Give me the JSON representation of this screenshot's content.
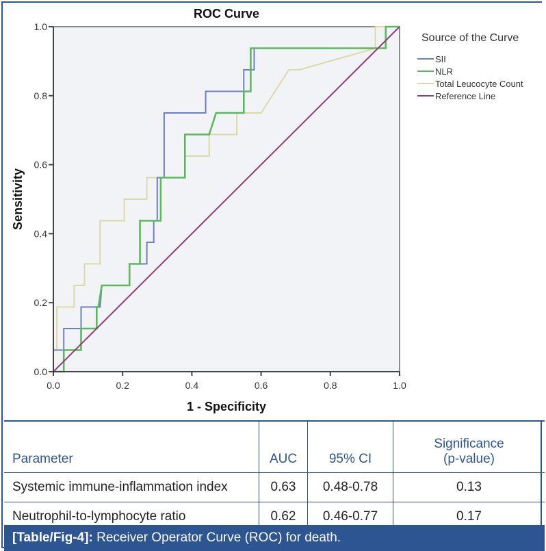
{
  "chart_data": {
    "type": "line",
    "title": "ROC Curve",
    "xlabel": "1 - Specificity",
    "ylabel": "Sensitivity",
    "xlim": [
      0,
      1
    ],
    "ylim": [
      0,
      1
    ],
    "xticks": [
      "0.0",
      "0.2",
      "0.4",
      "0.6",
      "0.8",
      "1.0"
    ],
    "yticks": [
      "0.0",
      "0.2",
      "0.4",
      "0.6",
      "0.8",
      "1.0"
    ],
    "grid": false,
    "legend_title": "Source of the Curve",
    "legend_position": "right",
    "series": [
      {
        "name": "SII",
        "color": "#6b7fc4",
        "x": [
          0.0,
          0.0,
          0.03,
          0.03,
          0.08,
          0.08,
          0.135,
          0.14,
          0.22,
          0.22,
          0.27,
          0.27,
          0.29,
          0.29,
          0.3,
          0.3,
          0.32,
          0.32,
          0.44,
          0.44,
          0.55,
          0.55,
          0.58,
          0.58,
          0.96,
          0.96,
          1.0
        ],
        "y": [
          0.0,
          0.0625,
          0.0625,
          0.125,
          0.125,
          0.1875,
          0.1875,
          0.25,
          0.25,
          0.3125,
          0.3125,
          0.375,
          0.375,
          0.4375,
          0.4375,
          0.5625,
          0.5625,
          0.75,
          0.75,
          0.8125,
          0.8125,
          0.875,
          0.875,
          0.9375,
          0.9375,
          1.0,
          1.0
        ]
      },
      {
        "name": "NLR",
        "color": "#5cb85c",
        "x": [
          0.0,
          0.03,
          0.03,
          0.04,
          0.04,
          0.08,
          0.08,
          0.125,
          0.125,
          0.13,
          0.14,
          0.22,
          0.22,
          0.25,
          0.25,
          0.31,
          0.31,
          0.38,
          0.38,
          0.45,
          0.47,
          0.55,
          0.55,
          0.57,
          0.57,
          0.96,
          0.96,
          1.0
        ],
        "y": [
          0.0,
          0.0,
          0.0625,
          0.0625,
          0.0625,
          0.0625,
          0.125,
          0.125,
          0.1875,
          0.1875,
          0.25,
          0.25,
          0.3125,
          0.3125,
          0.4375,
          0.4375,
          0.5625,
          0.5625,
          0.6875,
          0.6875,
          0.75,
          0.75,
          0.8125,
          0.8125,
          0.9375,
          0.9375,
          1.0,
          1.0
        ]
      },
      {
        "name": "Total Leucocyte Count",
        "color": "#dcd9a6",
        "x": [
          0.0,
          0.0,
          0.01,
          0.01,
          0.06,
          0.06,
          0.09,
          0.09,
          0.135,
          0.135,
          0.205,
          0.205,
          0.27,
          0.27,
          0.31,
          0.31,
          0.38,
          0.38,
          0.45,
          0.45,
          0.53,
          0.53,
          0.57,
          0.6,
          0.68,
          0.71,
          0.93,
          0.93,
          1.0
        ],
        "y": [
          0.0,
          0.0625,
          0.0625,
          0.1875,
          0.1875,
          0.25,
          0.25,
          0.3125,
          0.3125,
          0.4375,
          0.4375,
          0.5,
          0.5,
          0.5625,
          0.5625,
          0.5625,
          0.5625,
          0.625,
          0.625,
          0.6875,
          0.6875,
          0.75,
          0.75,
          0.75,
          0.875,
          0.875,
          0.9375,
          1.0,
          1.0
        ]
      },
      {
        "name": "Reference Line",
        "color": "#8e3f7a",
        "x": [
          0.0,
          1.0
        ],
        "y": [
          0.0,
          1.0
        ]
      }
    ]
  },
  "table": {
    "headers": [
      "Parameter",
      "AUC",
      "95% CI",
      "Significance (p-value)"
    ],
    "header_sig_line1": "Significance",
    "header_sig_line2": "(p-value)",
    "rows": [
      [
        "Systemic immune-inflammation index",
        "0.63",
        "0.48-0.78",
        "0.13"
      ],
      [
        "Neutrophil-to-lymphocyte ratio",
        "0.62",
        "0.46-0.77",
        "0.17"
      ]
    ]
  },
  "caption": {
    "label": "[Table/Fig-4]:",
    "text": " Receiver Operator Curve (ROC) for death."
  },
  "colors": {
    "accent": "#2c5592",
    "plot_bg": "#f2f3f6"
  }
}
